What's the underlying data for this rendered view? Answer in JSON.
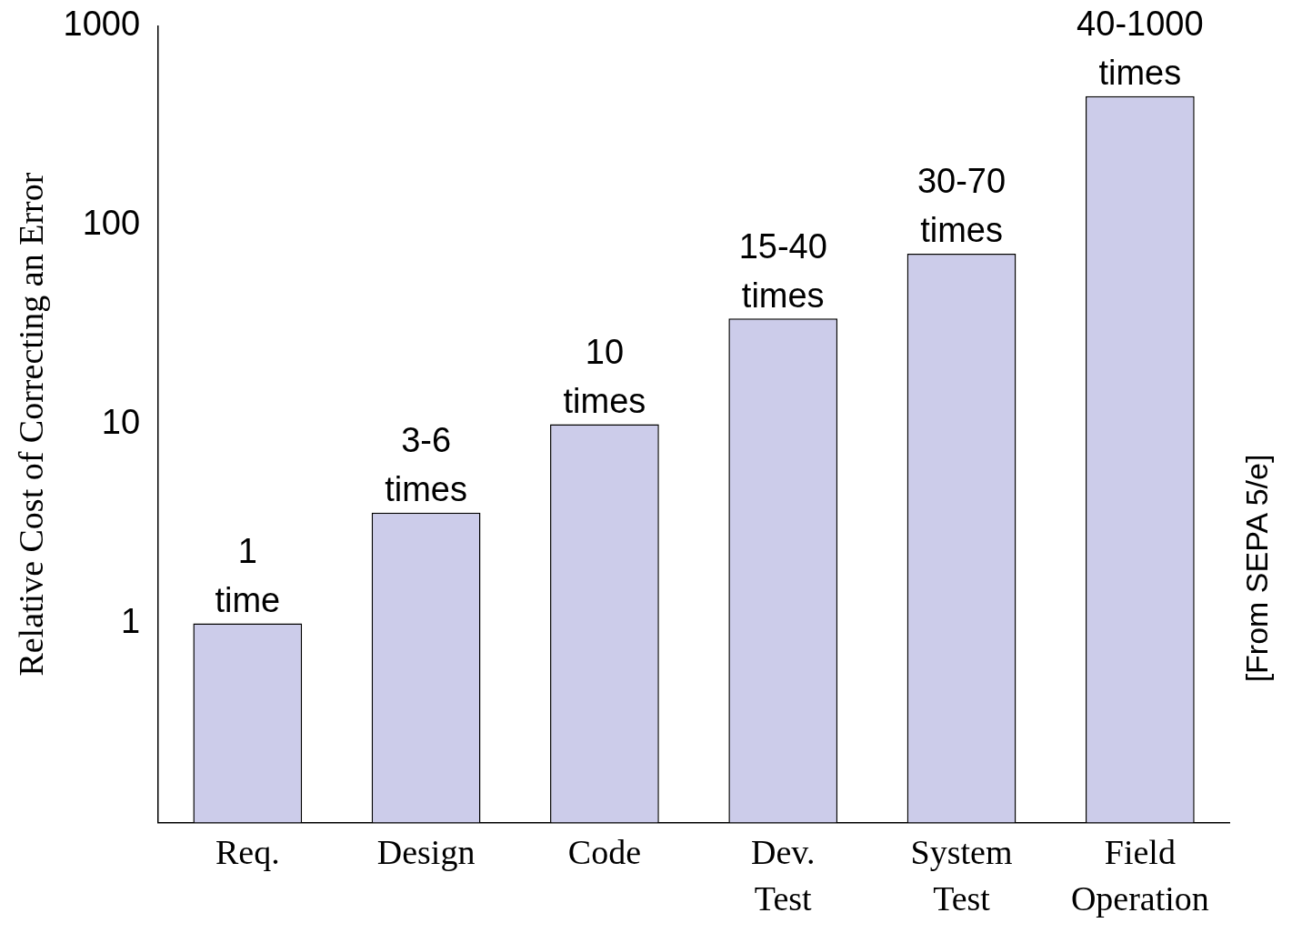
{
  "chart_data": {
    "type": "bar",
    "ylabel": "Relative Cost of Correcting an Error",
    "categories": [
      "Req.",
      "Design",
      "Code",
      "Dev. Test",
      "System Test",
      "Field Operation"
    ],
    "values": [
      1,
      3.6,
      10,
      34,
      72,
      445
    ],
    "value_labels": [
      "1 time",
      "3-6 times",
      "10 times",
      "15-40 times",
      "30-70 times",
      "40-1000 times"
    ],
    "color": "#ccccea",
    "log": "y",
    "ylim": [
      0.1,
      1000
    ],
    "yticks": [
      1,
      10,
      100,
      1000
    ],
    "grid": false,
    "legend": false,
    "annotations": [
      "[From SEPA 5/e]"
    ]
  }
}
